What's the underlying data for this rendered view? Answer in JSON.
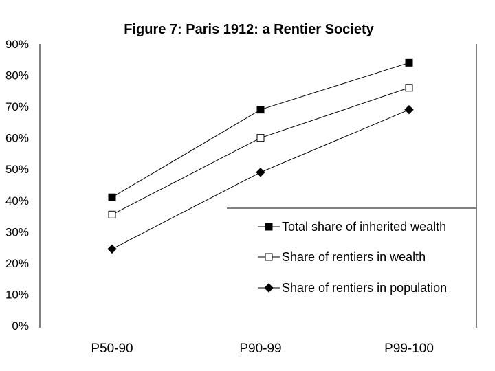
{
  "chart_data": {
    "type": "line",
    "title": "Figure 7: Paris 1912: a Rentier Society",
    "xlabel": "",
    "ylabel": "",
    "categories": [
      "P50-90",
      "P90-99",
      "P99-100"
    ],
    "ylim": [
      0,
      90
    ],
    "yticks": [
      0,
      10,
      20,
      30,
      40,
      50,
      60,
      70,
      80,
      90
    ],
    "ytick_labels": [
      "0%",
      "10%",
      "20%",
      "30%",
      "40%",
      "50%",
      "60%",
      "70%",
      "80%",
      "90%"
    ],
    "grid": false,
    "legend_position": "bottom-right",
    "series": [
      {
        "name": "Total share of inherited wealth",
        "marker": "filled-square",
        "color": "#000000",
        "values": [
          41,
          69,
          84
        ]
      },
      {
        "name": "Share of rentiers in wealth",
        "marker": "open-square",
        "color": "#000000",
        "values": [
          35.5,
          60,
          76
        ]
      },
      {
        "name": "Share of rentiers in population",
        "marker": "filled-diamond",
        "color": "#000000",
        "values": [
          24.5,
          49,
          69
        ]
      }
    ]
  }
}
